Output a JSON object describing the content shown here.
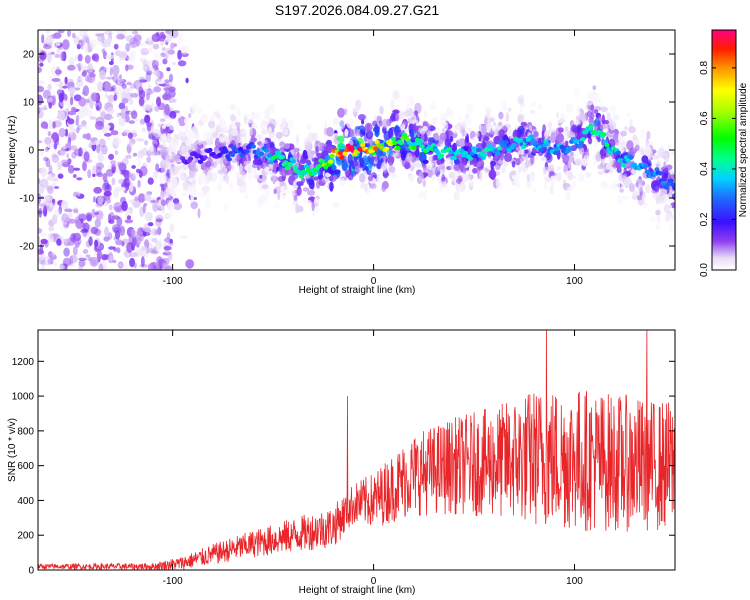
{
  "title": "S197.2026.084.09.27.G21",
  "chart_data": [
    {
      "type": "heatmap",
      "xlabel": "Height of straight line (km)",
      "ylabel": "Frequency (Hz)",
      "xlim": [
        -167,
        150
      ],
      "ylim": [
        -25,
        25
      ],
      "xticks": [
        -100,
        0,
        100
      ],
      "yticks": [
        -20,
        -10,
        0,
        10,
        20
      ],
      "colorbar": {
        "label": "Normalized spectral amplitude",
        "range": [
          0,
          0.95
        ],
        "ticks": [
          0.0,
          0.2,
          0.4,
          0.6,
          0.8
        ]
      },
      "ridge": {
        "x": [
          -100,
          -80,
          -60,
          -45,
          -35,
          -25,
          -15,
          0,
          15,
          30,
          45,
          60,
          75,
          90,
          100,
          110,
          120,
          130,
          140,
          150
        ],
        "frequency": [
          -2,
          -1,
          0,
          -2,
          -5,
          -3,
          0,
          0,
          2,
          0,
          -1,
          0,
          2,
          0,
          1,
          5,
          -1,
          -3,
          -5,
          -8
        ],
        "peak_amplitude": [
          0.15,
          0.2,
          0.3,
          0.5,
          0.45,
          0.6,
          0.9,
          0.85,
          0.55,
          0.45,
          0.4,
          0.4,
          0.4,
          0.35,
          0.35,
          0.5,
          0.4,
          0.35,
          0.3,
          0.3
        ]
      }
    },
    {
      "type": "line",
      "color": "#e8262a",
      "xlabel": "Height of straight line (km)",
      "ylabel": "SNR (10 * v/v)",
      "xlim": [
        -167,
        150
      ],
      "ylim": [
        0,
        1380
      ],
      "xticks": [
        -100,
        0,
        100
      ],
      "yticks": [
        0,
        200,
        400,
        600,
        800,
        1000,
        1200
      ],
      "envelope": {
        "x": [
          -167,
          -110,
          -95,
          -80,
          -60,
          -40,
          -20,
          -10,
          0,
          20,
          40,
          60,
          80,
          100,
          120,
          140,
          150
        ],
        "mean": [
          20,
          20,
          40,
          90,
          150,
          200,
          250,
          380,
          400,
          550,
          600,
          620,
          650,
          640,
          620,
          600,
          600
        ],
        "amplitude": [
          15,
          20,
          40,
          60,
          80,
          100,
          120,
          120,
          160,
          240,
          280,
          320,
          400,
          420,
          400,
          380,
          380
        ]
      },
      "spikes": [
        {
          "x": -13,
          "y": 1000
        },
        {
          "x": 86,
          "y": 1380
        },
        {
          "x": 136,
          "y": 1380
        }
      ]
    }
  ]
}
